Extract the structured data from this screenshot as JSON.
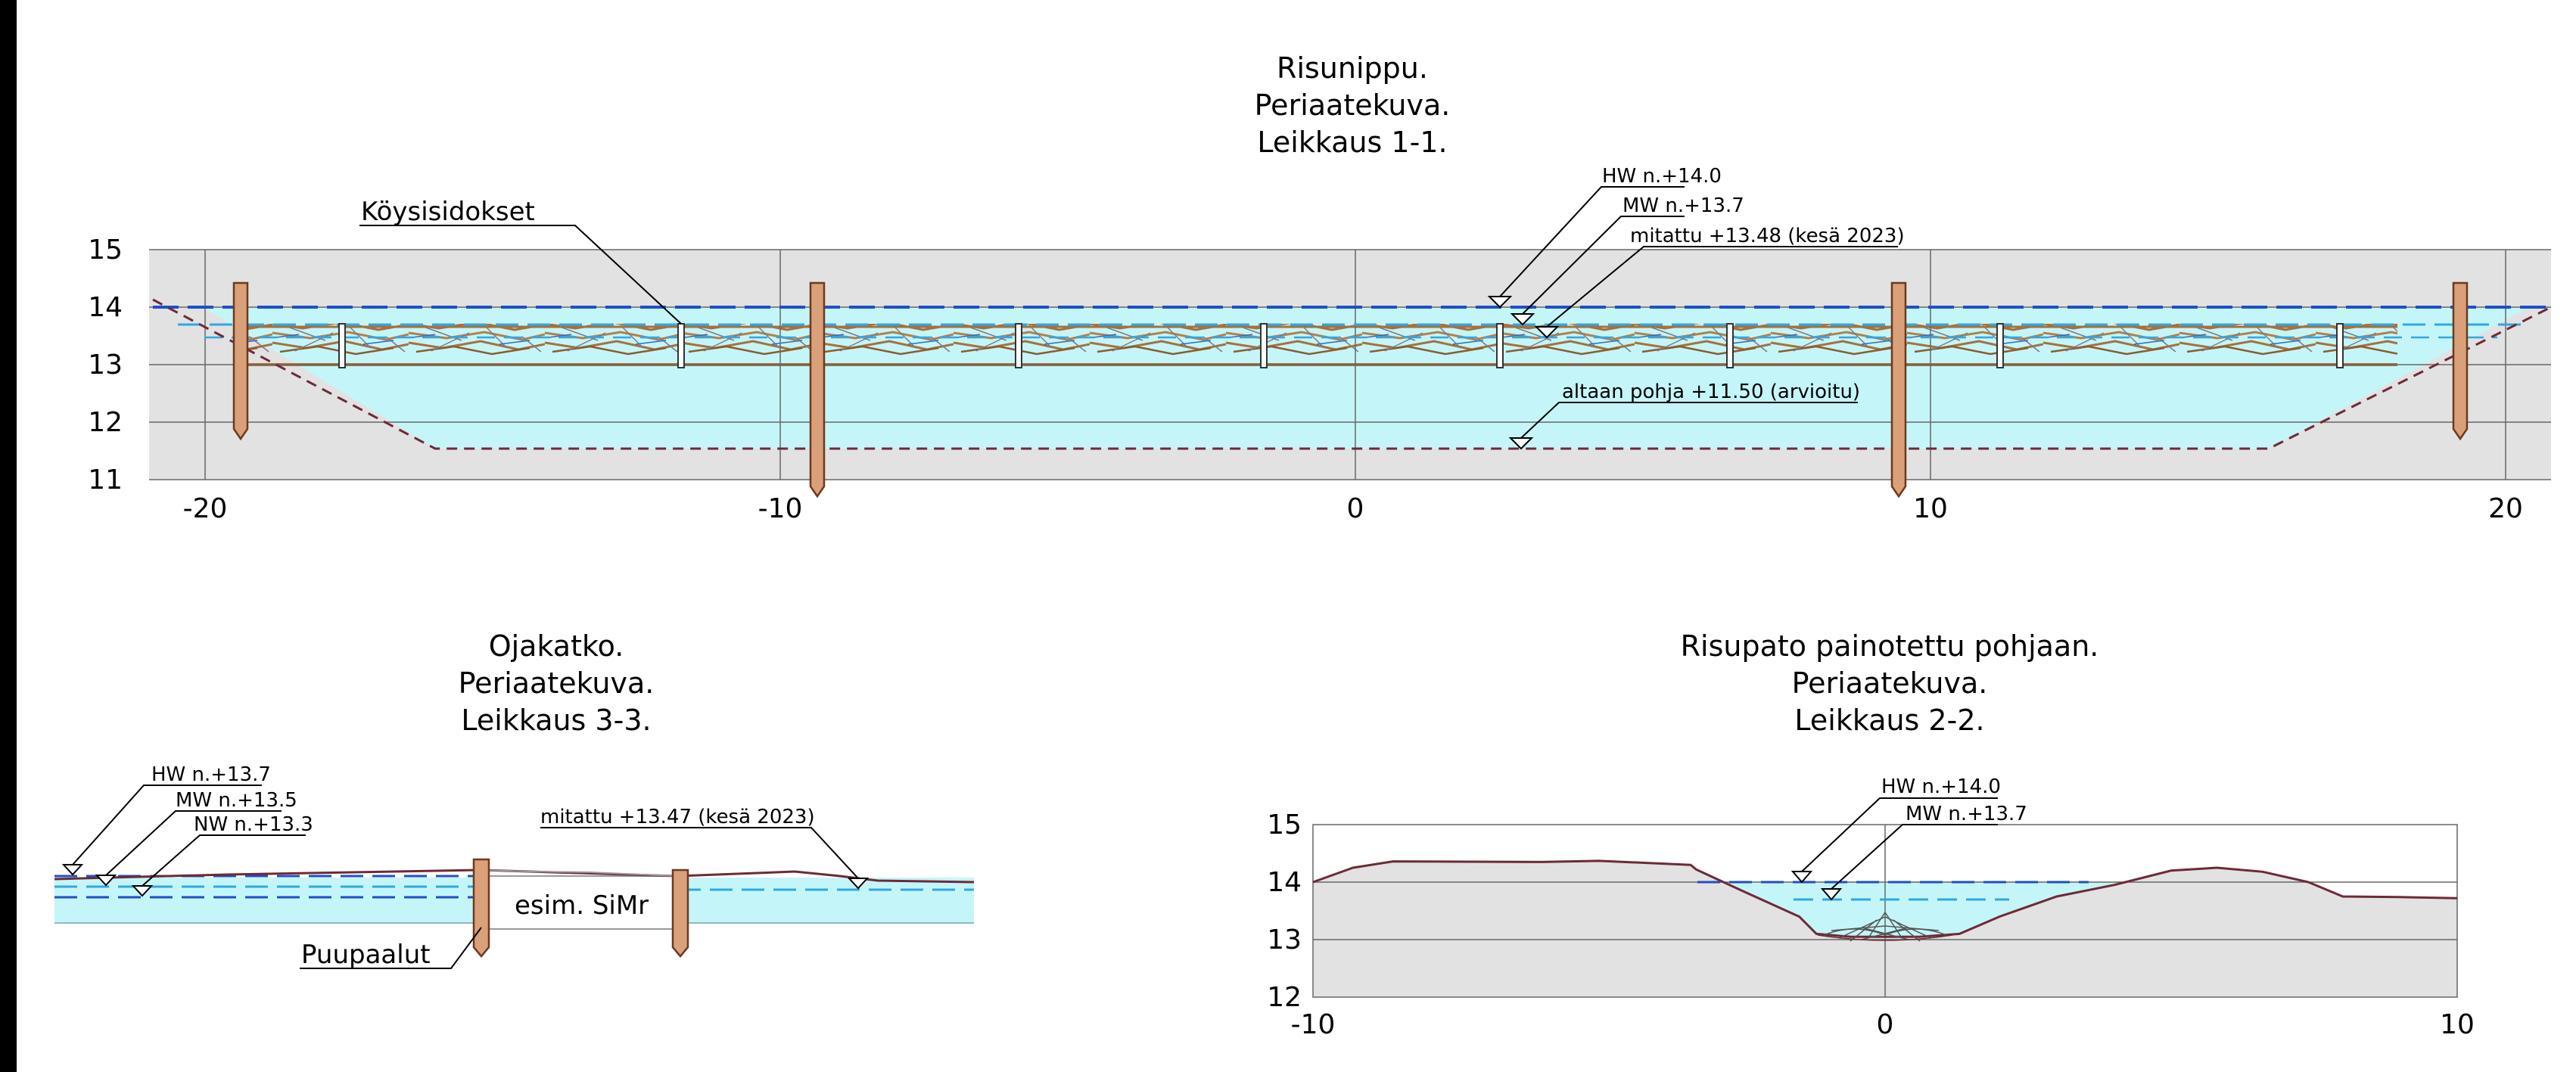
{
  "colors": {
    "ground": "#e2e2e2",
    "water": "#c4f6f9",
    "hw_line": "#1f4fc6",
    "mw_line": "#2fa7e6",
    "bottom_line": "#6e2a36",
    "brush": "#a8703a",
    "pile": "#d9a07a",
    "grid": "#666666"
  },
  "section_1": {
    "title": [
      "Risunippu.",
      "Periaatekuva.",
      "Leikkaus 1-1."
    ],
    "y_ticks": [
      "15",
      "14",
      "13",
      "12",
      "11"
    ],
    "x_ticks": [
      "-20",
      "-10",
      "0",
      "10",
      "20"
    ],
    "callouts": {
      "ropes": "Köysisidokset",
      "hw": "HW n.+14.0",
      "mw": "MW n.+13.7",
      "measured": "mitattu +13.48 (kesä 2023)",
      "bottom": "altaan pohja +11.50 (arvioitu)"
    },
    "levels": {
      "hw": 14.0,
      "mw": 13.7,
      "measured": 13.48,
      "bottom": 11.5
    },
    "piles_x": [
      -19.5,
      -9.5,
      9.5,
      19.5
    ],
    "bindings_x": [
      -17.7,
      -11.8,
      -5.9,
      -1.6,
      2.5,
      6.5,
      11.2,
      17.1
    ]
  },
  "section_3": {
    "title": [
      "Ojakatko.",
      "Periaatekuva.",
      "Leikkaus 3-3."
    ],
    "callouts": {
      "hw": "HW n.+13.7",
      "mw": "MW n.+13.5",
      "nw": "NW n.+13.3",
      "measured": "mitattu +13.47 (kesä 2023)",
      "fill": "esim. SiMr",
      "piles": "Puupaalut"
    },
    "levels": {
      "hw": 13.7,
      "mw": 13.5,
      "nw": 13.3,
      "measured": 13.47
    }
  },
  "section_2": {
    "title": [
      "Risupato painotettu pohjaan.",
      "Periaatekuva.",
      "Leikkaus 2-2."
    ],
    "y_ticks": [
      "15",
      "14",
      "13",
      "12"
    ],
    "x_ticks": [
      "-10",
      "0",
      "10"
    ],
    "callouts": {
      "hw": "HW n.+14.0",
      "mw": "MW n.+13.7"
    },
    "levels": {
      "hw": 14.0,
      "mw": 13.7
    },
    "ground_profile": [
      [
        -10,
        14.0
      ],
      [
        -9.3,
        14.25
      ],
      [
        -8.6,
        14.36
      ],
      [
        -6,
        14.35
      ],
      [
        -5,
        14.37
      ],
      [
        -3.4,
        14.3
      ],
      [
        -3.3,
        14.22
      ],
      [
        -2.5,
        13.85
      ],
      [
        -1.5,
        13.4
      ],
      [
        -1.2,
        13.1
      ],
      [
        -0.6,
        13.05
      ],
      [
        0.6,
        13.05
      ],
      [
        1.3,
        13.1
      ],
      [
        2,
        13.4
      ],
      [
        3,
        13.75
      ],
      [
        4,
        13.95
      ],
      [
        5,
        14.2
      ],
      [
        5.8,
        14.25
      ],
      [
        6.6,
        14.18
      ],
      [
        7.4,
        14.0
      ],
      [
        8,
        13.75
      ],
      [
        9,
        13.74
      ],
      [
        10,
        13.72
      ]
    ]
  }
}
